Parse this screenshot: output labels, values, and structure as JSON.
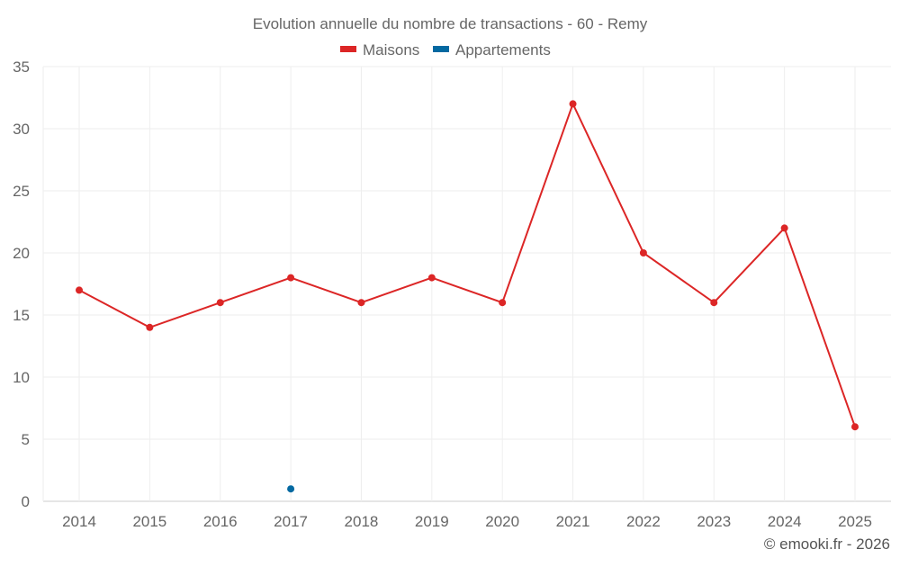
{
  "chart_data": {
    "type": "line",
    "title": "Evolution annuelle du nombre de transactions - 60 - Remy",
    "categories": [
      "2014",
      "2015",
      "2016",
      "2017",
      "2018",
      "2019",
      "2020",
      "2021",
      "2022",
      "2023",
      "2024",
      "2025"
    ],
    "series": [
      {
        "name": "Maisons",
        "color": "#dc2626",
        "values": [
          17,
          14,
          16,
          18,
          16,
          18,
          16,
          32,
          20,
          16,
          22,
          6
        ]
      },
      {
        "name": "Appartements",
        "color": "#0369a1",
        "values": [
          null,
          null,
          null,
          1,
          null,
          null,
          null,
          null,
          null,
          null,
          null,
          null
        ]
      }
    ],
    "yticks": [
      "0",
      "5",
      "10",
      "15",
      "20",
      "25",
      "30",
      "35"
    ],
    "ylim": [
      0,
      35
    ],
    "xlabel": "",
    "ylabel": "",
    "grid": true,
    "legend_position": "top-center"
  },
  "credit": "© emooki.fr - 2026"
}
